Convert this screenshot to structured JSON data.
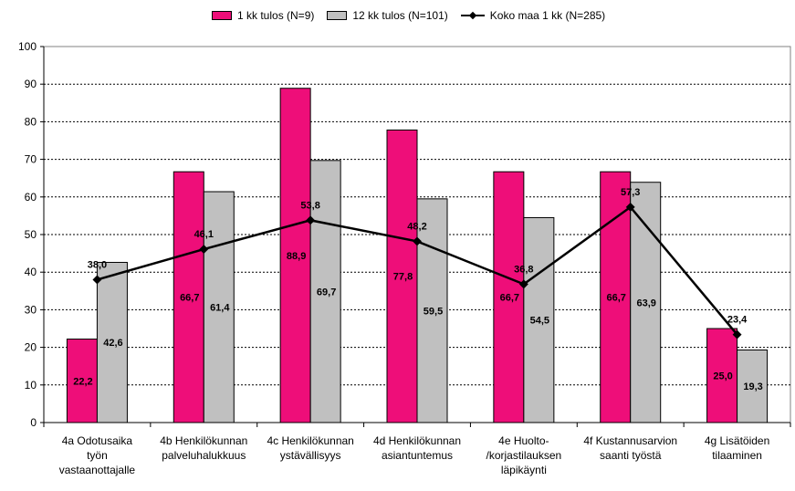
{
  "chart_data": {
    "type": "bar",
    "categories": [
      "4a Odotusaika työn vastaanottajalle",
      "4b Henkilökunnan palveluhalukkuus",
      "4c Henkilökunnan ystävällisyys",
      "4d Henkilökunnan asiantuntemus",
      "4e Huolto- /korjastilauksen läpikäynti",
      "4f Kustannusarvion saanti työstä",
      "4g Lisätöiden tilaaminen"
    ],
    "category_lines": [
      [
        "4a Odotusaika",
        "työn",
        "vastaanottajalle"
      ],
      [
        "4b Henkilökunnan",
        "palveluhalukkuus"
      ],
      [
        "4c Henkilökunnan",
        "ystävällisyys"
      ],
      [
        "4d Henkilökunnan",
        "asiantuntemus"
      ],
      [
        "4e Huolto-",
        "/korjastilauksen",
        "läpikäynti"
      ],
      [
        "4f Kustannusarvion",
        "saanti työstä"
      ],
      [
        "4g Lisätöiden",
        "tilaaminen"
      ]
    ],
    "series": [
      {
        "name": "1 kk tulos (N=9)",
        "kind": "bar",
        "color": "#ee0e79",
        "values": [
          22.2,
          66.7,
          88.9,
          77.8,
          66.7,
          66.7,
          25.0
        ],
        "labels": [
          "22,2",
          "66,7",
          "88,9",
          "77,8",
          "66,7",
          "66,7",
          "25,0"
        ]
      },
      {
        "name": "12 kk tulos (N=101)",
        "kind": "bar",
        "color": "#c0c0c0",
        "values": [
          42.6,
          61.4,
          69.7,
          59.5,
          54.5,
          63.9,
          19.3
        ],
        "labels": [
          "42,6",
          "61,4",
          "69,7",
          "59,5",
          "54,5",
          "63,9",
          "19,3"
        ]
      },
      {
        "name": "Koko maa 1 kk (N=285)",
        "kind": "line",
        "color": "#000000",
        "values": [
          38.0,
          46.1,
          53.8,
          48.2,
          36.8,
          57.3,
          23.4
        ],
        "labels": [
          "38,0",
          "46,1",
          "53,8",
          "48,2",
          "36,8",
          "57,3",
          "23,4"
        ]
      }
    ],
    "yticks": [
      "0",
      "10",
      "20",
      "30",
      "40",
      "50",
      "60",
      "70",
      "80",
      "90",
      "100"
    ],
    "ylim": [
      0,
      100
    ],
    "grid": true,
    "legend_position": "top",
    "title": "",
    "xlabel": "",
    "ylabel": ""
  }
}
